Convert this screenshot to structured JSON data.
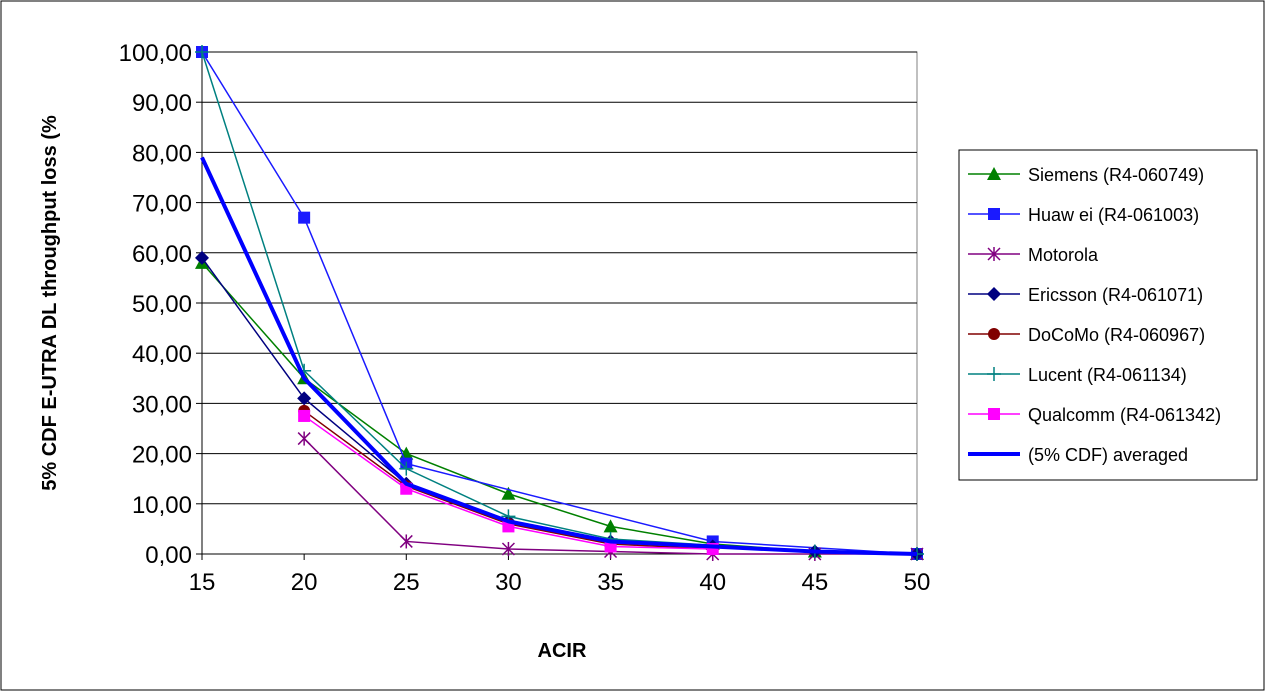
{
  "chart_data": {
    "type": "line",
    "title": "",
    "xlabel": "ACIR",
    "ylabel": "5% CDF E-UTRA DL throughput loss (%",
    "x": [
      15,
      20,
      25,
      30,
      35,
      40,
      45,
      50
    ],
    "xlim": [
      15,
      50
    ],
    "ylim": [
      0,
      100
    ],
    "y_ticks": [
      "0,00",
      "10,00",
      "20,00",
      "30,00",
      "40,00",
      "50,00",
      "60,00",
      "70,00",
      "80,00",
      "90,00",
      "100,00"
    ],
    "x_ticks": [
      "15",
      "20",
      "25",
      "30",
      "35",
      "40",
      "45",
      "50"
    ],
    "grid": "horizontal",
    "legend_position": "right",
    "series": [
      {
        "name": "Siemens (R4-060749)",
        "color": "#008000",
        "marker": "triangle",
        "values": [
          58.0,
          35.0,
          20.0,
          12.0,
          5.5,
          2.0,
          0.5,
          0.0
        ]
      },
      {
        "name": "Huaw ei (R4-061003)",
        "color": "#1a1aff",
        "marker": "square",
        "values": [
          100.0,
          67.0,
          18.0,
          null,
          null,
          2.5,
          null,
          0.0
        ]
      },
      {
        "name": "Motorola",
        "color": "#800080",
        "marker": "star",
        "values": [
          null,
          23.0,
          2.5,
          1.0,
          0.5,
          0.0,
          0.0,
          0.0
        ]
      },
      {
        "name": "Ericsson (R4-061071)",
        "color": "#000080",
        "marker": "diamond",
        "values": [
          59.0,
          31.0,
          14.0,
          6.5,
          2.5,
          1.5,
          0.5,
          0.0
        ]
      },
      {
        "name": "DoCoMo (R4-060967)",
        "color": "#800000",
        "marker": "circle",
        "values": [
          null,
          28.5,
          13.5,
          6.0,
          2.0,
          1.0,
          null,
          null
        ]
      },
      {
        "name": "Lucent (R4-061134)",
        "color": "#008080",
        "marker": "plus",
        "values": [
          100.0,
          36.5,
          17.0,
          7.5,
          3.0,
          null,
          0.5,
          0.0
        ]
      },
      {
        "name": "Qualcomm (R4-061342)",
        "color": "#ff00ff",
        "marker": "square",
        "values": [
          null,
          27.5,
          13.0,
          5.5,
          1.5,
          1.0,
          null,
          null
        ]
      },
      {
        "name": "(5% CDF) averaged",
        "color": "#0000ff",
        "marker": "none",
        "values": [
          79.0,
          35.0,
          14.0,
          6.5,
          2.5,
          1.5,
          0.5,
          0.0
        ]
      }
    ]
  }
}
